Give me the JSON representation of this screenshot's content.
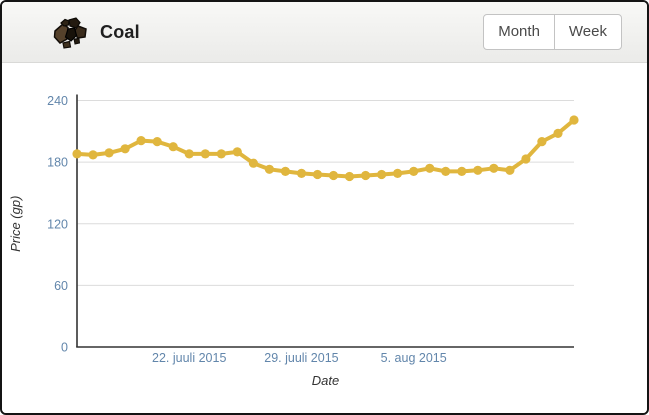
{
  "header": {
    "title": "Coal",
    "icon": "coal-icon"
  },
  "toolbar": {
    "month_label": "Month",
    "week_label": "Week"
  },
  "colors": {
    "line": "#e0b63e",
    "tick_label": "#6286ab",
    "axis": "#333333",
    "grid": "#dcdcdc",
    "axis_title": "#333333",
    "header_bg": "#f1f1ef",
    "border": "#141414"
  },
  "chart_data": {
    "type": "line",
    "title": "",
    "xlabel": "Date",
    "ylabel": "Price (gp)",
    "ylim": [
      0,
      240
    ],
    "yticks": [
      0,
      60,
      120,
      180,
      240
    ],
    "xtick_labels": [
      {
        "index": 7,
        "label": "22. juuli 2015"
      },
      {
        "index": 14,
        "label": "29. juuli 2015"
      },
      {
        "index": 21,
        "label": "5. aug 2015"
      }
    ],
    "grid": true,
    "legend": "none",
    "series": [
      {
        "name": "Coal",
        "color": "#e0b63e",
        "values": [
          188,
          187,
          189,
          193,
          201,
          200,
          195,
          188,
          188,
          188,
          190,
          179,
          173,
          171,
          169,
          168,
          167,
          166,
          167,
          168,
          169,
          171,
          174,
          171,
          171,
          172,
          174,
          172,
          183,
          200,
          208,
          221
        ]
      }
    ]
  }
}
